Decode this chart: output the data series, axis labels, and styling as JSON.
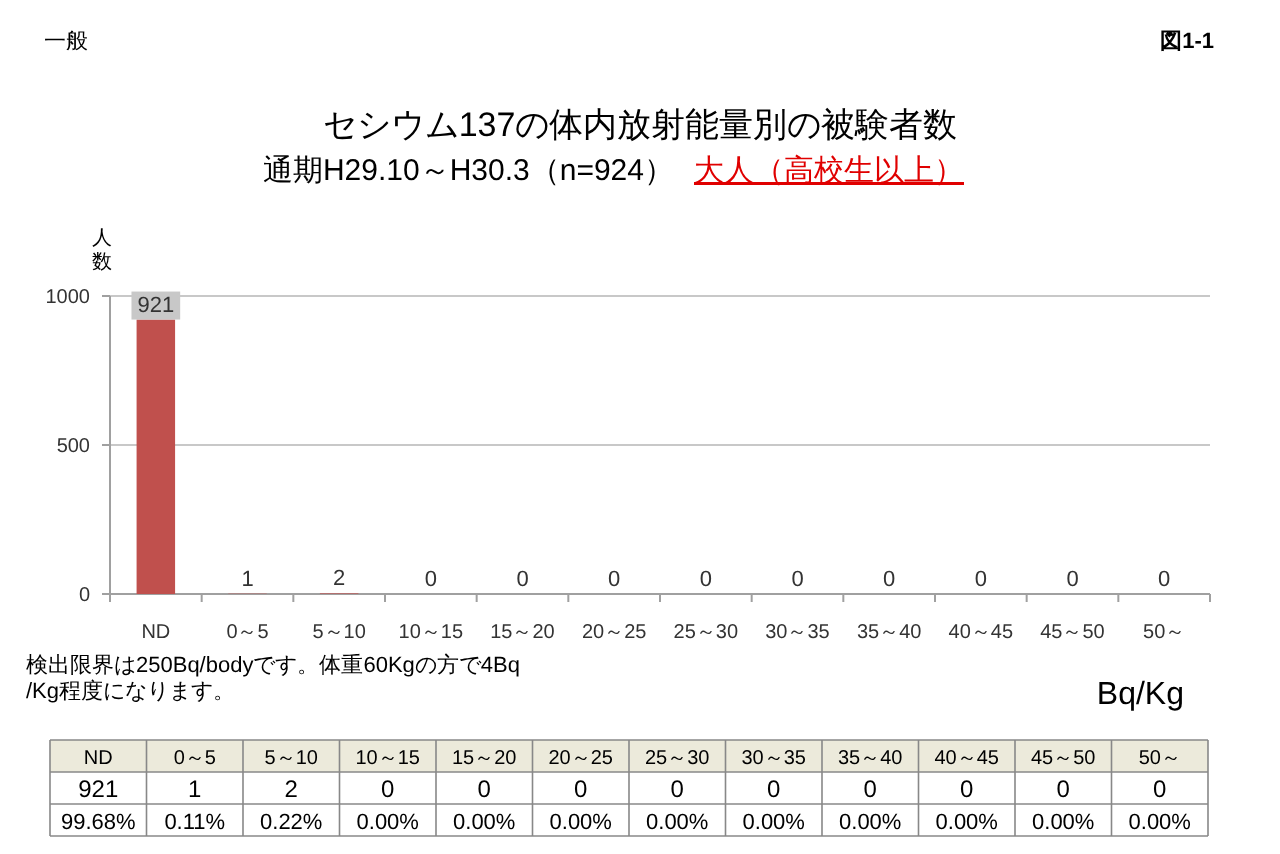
{
  "chart_data": {
    "type": "bar",
    "title": "セシウム137の体内放射能量別の被験者数",
    "subtitle": "通期H29.10～H30.3（n=924）",
    "ylabel": "人数",
    "xlabel": "Bq/Kg",
    "categories": [
      "ND",
      "0～5",
      "5～10",
      "10～15",
      "15～20",
      "20～25",
      "25～30",
      "30～35",
      "35～40",
      "40～45",
      "45～50",
      "50～"
    ],
    "values": [
      921,
      1,
      2,
      0,
      0,
      0,
      0,
      0,
      0,
      0,
      0,
      0
    ],
    "color": "#c0504d",
    "ylim": [
      0,
      1000
    ],
    "yticks": [
      0,
      500,
      1000
    ],
    "grid": "y",
    "data_labels": true,
    "annotations": [
      "一般",
      "図1-1",
      "大人（高校生以上）",
      "検出限界は250Bq/bodyです。体重60Kgの方で4Bq/Kg程度になります。",
      "921",
      "1",
      "2",
      "0",
      "0",
      "0",
      "0",
      "0",
      "0",
      "0",
      "0",
      "0",
      "99.68%",
      "0.11%",
      "0.22%",
      "0.00%",
      "0.00%",
      "0.00%",
      "0.00%",
      "0.00%",
      "0.00%",
      "0.00%",
      "0.00%",
      "0.00%"
    ]
  }
}
